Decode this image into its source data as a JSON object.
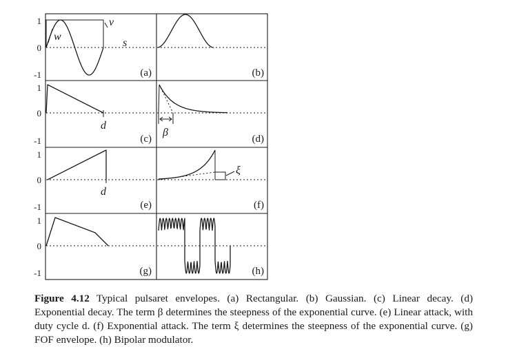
{
  "figure": {
    "panels": [
      {
        "label": "(a)",
        "name": "Rectangular"
      },
      {
        "label": "(b)",
        "name": "Gaussian"
      },
      {
        "label": "(c)",
        "name": "Linear decay"
      },
      {
        "label": "(d)",
        "name": "Exponential decay"
      },
      {
        "label": "(e)",
        "name": "Linear attack"
      },
      {
        "label": "(f)",
        "name": "Exponential attack"
      },
      {
        "label": "(g)",
        "name": "FOF envelope"
      },
      {
        "label": "(h)",
        "name": "Bipolar modulator"
      }
    ],
    "y_ticks": {
      "row1": [
        "1",
        "0",
        "-1"
      ],
      "row2": [
        "1",
        "0",
        "-1"
      ],
      "row3": [
        "1",
        "0",
        "-1"
      ],
      "row4": [
        "1",
        "0",
        "-1"
      ]
    },
    "annotations": {
      "w": "w",
      "v": "v",
      "s": "s",
      "d_c": "d",
      "beta": "β",
      "d_e": "d",
      "xi": "ξ"
    }
  },
  "caption": {
    "number": "Figure 4.12",
    "text": "Typical pulsaret envelopes. (a) Rectangular. (b) Gaussian. (c) Linear decay. (d) Exponential decay. The term β determines the steepness of the exponential curve. (e) Linear attack, with duty cycle d. (f) Exponential attack. The term ξ determines the steepness of the exponential curve. (g) FOF envelope. (h) Bipolar modulator."
  }
}
